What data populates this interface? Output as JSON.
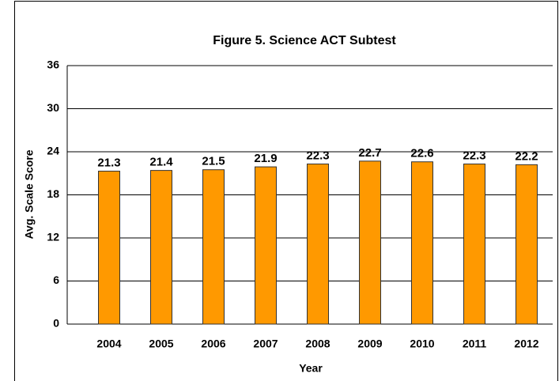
{
  "chart_data": {
    "type": "bar",
    "title": "Figure 5. Science ACT Subtest",
    "x_label": "Year",
    "y_label": "Avg. Scale Score",
    "categories": [
      "2004",
      "2005",
      "2006",
      "2007",
      "2008",
      "2009",
      "2010",
      "2011",
      "2012"
    ],
    "values": [
      21.3,
      21.4,
      21.5,
      21.9,
      22.3,
      22.7,
      22.6,
      22.3,
      22.2
    ],
    "color": "#ff9900",
    "ylim": [
      0,
      36
    ],
    "yticks": [
      0,
      6,
      12,
      18,
      24,
      30,
      36
    ],
    "grid": true
  }
}
